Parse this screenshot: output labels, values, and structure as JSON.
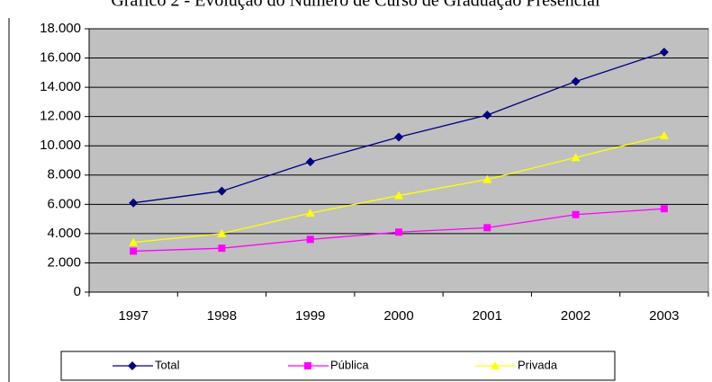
{
  "chart_data": {
    "type": "line",
    "title": "Gráfico 2 - Evolução do Número de Curso de Graduação Presencial",
    "categories": [
      "1997",
      "1998",
      "1999",
      "2000",
      "2001",
      "2002",
      "2003"
    ],
    "series": [
      {
        "name": "Total",
        "color": "#000080",
        "marker": "diamond",
        "values": [
          6100,
          6900,
          8900,
          10600,
          12100,
          14400,
          16400
        ]
      },
      {
        "name": "Pública",
        "color": "#ff00ff",
        "marker": "square",
        "values": [
          2800,
          3000,
          3600,
          4100,
          4400,
          5300,
          5700
        ]
      },
      {
        "name": "Privada",
        "color": "#ffff00",
        "marker": "triangle",
        "values": [
          3400,
          4000,
          5400,
          6600,
          7700,
          9200,
          10700
        ]
      }
    ],
    "ylim": [
      0,
      18000
    ],
    "yticks": [
      0,
      {
        "value": 2000,
        "label": "2.000"
      },
      {
        "value": 4000,
        "label": "4.000"
      },
      {
        "value": 6000,
        "label": "6.000"
      },
      {
        "value": 8000,
        "label": "8.000"
      },
      {
        "value": 10000,
        "label": "10.000"
      },
      {
        "value": 12000,
        "label": "12.000"
      },
      {
        "value": 14000,
        "label": "14.000"
      },
      {
        "value": 16000,
        "label": "16.000"
      },
      {
        "value": 18000,
        "label": "18.000"
      }
    ],
    "grid": true,
    "plot_background": "#c0c0c0",
    "legend": "bottom"
  }
}
